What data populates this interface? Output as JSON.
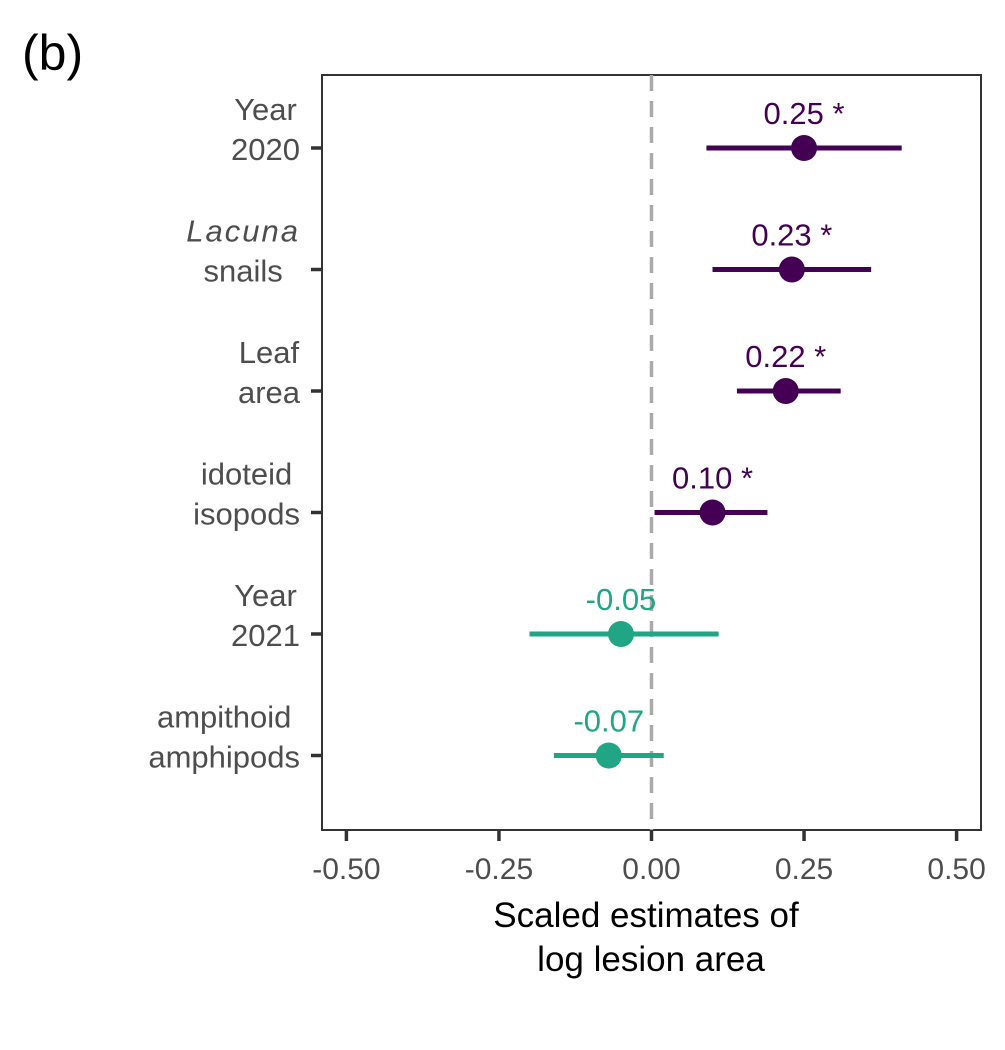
{
  "panel_label": "(b)",
  "colors": {
    "significant": "#440154",
    "not_significant": "#21a685",
    "zero_line": "#aaaaaa",
    "panel_border": "#333333",
    "tick_label": "#4d4d4d"
  },
  "chart_data": {
    "type": "scatter",
    "subtype": "forest-plot",
    "orientation": "horizontal",
    "title": "",
    "xlabel_lines": [
      "Scaled estimates of",
      "log lesion area"
    ],
    "ylabel": "",
    "xlim": [
      -0.54,
      0.54
    ],
    "x_ticks": [
      -0.5,
      -0.25,
      0.0,
      0.25,
      0.5
    ],
    "x_tick_labels": [
      "-0.50",
      "-0.25",
      "0.00",
      "0.25",
      "0.50"
    ],
    "reference_line": 0.0,
    "grid": false,
    "legend": "none",
    "categories": [
      {
        "lines": [
          "Year",
          "2020"
        ],
        "italic_first_line": false,
        "estimate": 0.25,
        "lower": 0.09,
        "upper": 0.41,
        "label": "0.25 *",
        "significant": true
      },
      {
        "lines": [
          "Lacuna",
          "snails"
        ],
        "italic_first_line": true,
        "estimate": 0.23,
        "lower": 0.1,
        "upper": 0.36,
        "label": "0.23 *",
        "significant": true
      },
      {
        "lines": [
          "Leaf",
          "area"
        ],
        "italic_first_line": false,
        "estimate": 0.22,
        "lower": 0.14,
        "upper": 0.31,
        "label": "0.22 *",
        "significant": true
      },
      {
        "lines": [
          "idoteid",
          "isopods"
        ],
        "italic_first_line": false,
        "estimate": 0.1,
        "lower": 0.005,
        "upper": 0.19,
        "label": "0.10 *",
        "significant": true
      },
      {
        "lines": [
          "Year",
          "2021"
        ],
        "italic_first_line": false,
        "estimate": -0.05,
        "lower": -0.2,
        "upper": 0.11,
        "label": "-0.05",
        "significant": false
      },
      {
        "lines": [
          "ampithoid",
          "amphipods"
        ],
        "italic_first_line": false,
        "estimate": -0.07,
        "lower": -0.16,
        "upper": 0.02,
        "label": "-0.07",
        "significant": false
      }
    ]
  }
}
